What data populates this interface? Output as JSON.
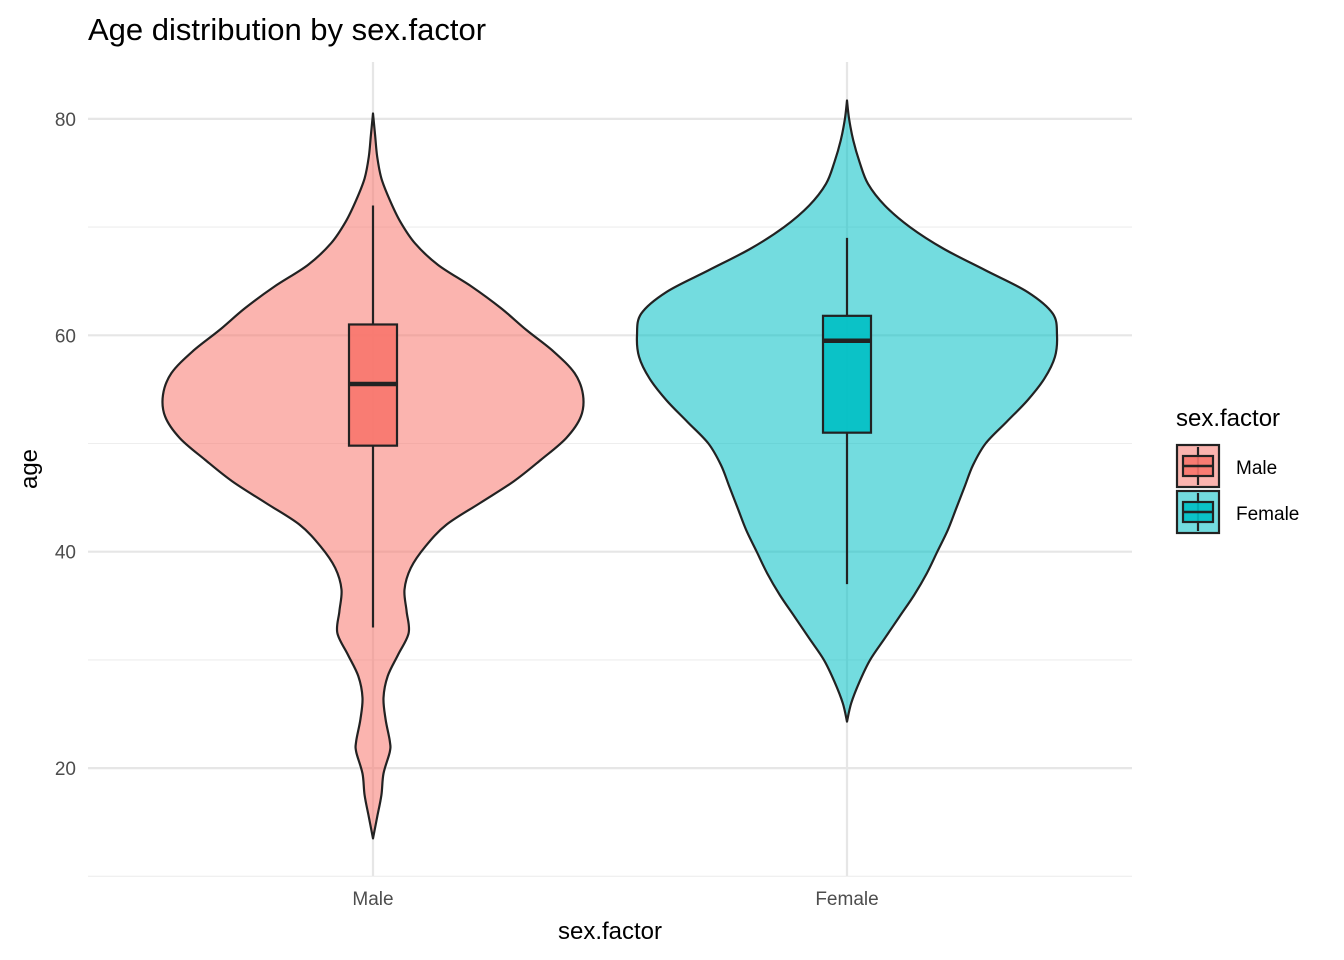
{
  "chart_data": {
    "type": "violin",
    "title": "Age distribution by sex.factor",
    "xlabel": "sex.factor",
    "ylabel": "age",
    "ylim": [
      10,
      85
    ],
    "yticks": [
      20,
      40,
      60,
      80
    ],
    "grid": true,
    "legend": {
      "title": "sex.factor",
      "position": "right",
      "entries": [
        "Male",
        "Female"
      ]
    },
    "categories": [
      "Male",
      "Female"
    ],
    "series": [
      {
        "name": "Male",
        "color": "#F8766D",
        "box": {
          "whisker_low": 33,
          "q1": 49.8,
          "median": 55.5,
          "q3": 61,
          "whisker_high": 72
        },
        "density": [
          [
            13.5,
            0
          ],
          [
            15.5,
            0.02
          ],
          [
            17.5,
            0.04
          ],
          [
            19.5,
            0.05
          ],
          [
            21.5,
            0.08
          ],
          [
            22.5,
            0.08
          ],
          [
            24.5,
            0.06
          ],
          [
            26.5,
            0.05
          ],
          [
            28.5,
            0.07
          ],
          [
            30.5,
            0.12
          ],
          [
            32.5,
            0.17
          ],
          [
            34.5,
            0.16
          ],
          [
            36.5,
            0.15
          ],
          [
            38.5,
            0.18
          ],
          [
            40.5,
            0.25
          ],
          [
            42.5,
            0.35
          ],
          [
            44.5,
            0.51
          ],
          [
            46.5,
            0.67
          ],
          [
            48.5,
            0.8
          ],
          [
            50.5,
            0.92
          ],
          [
            52.5,
            0.99
          ],
          [
            54.5,
            1.0
          ],
          [
            56.5,
            0.96
          ],
          [
            58.5,
            0.86
          ],
          [
            60.5,
            0.73
          ],
          [
            62.5,
            0.61
          ],
          [
            64.5,
            0.47
          ],
          [
            66.5,
            0.31
          ],
          [
            68.5,
            0.2
          ],
          [
            70.5,
            0.13
          ],
          [
            72.5,
            0.08
          ],
          [
            74.5,
            0.04
          ],
          [
            76.5,
            0.02
          ],
          [
            78.5,
            0.01
          ],
          [
            80.5,
            0
          ]
        ]
      },
      {
        "name": "Female",
        "color": "#00BFC4",
        "box": {
          "whisker_low": 37,
          "q1": 51,
          "median": 59.5,
          "q3": 61.8,
          "whisker_high": 69
        },
        "density": [
          [
            24.3,
            0
          ],
          [
            26,
            0.02
          ],
          [
            28,
            0.06
          ],
          [
            30,
            0.11
          ],
          [
            32,
            0.18
          ],
          [
            34,
            0.25
          ],
          [
            36,
            0.32
          ],
          [
            38,
            0.38
          ],
          [
            40,
            0.43
          ],
          [
            42,
            0.48
          ],
          [
            44,
            0.52
          ],
          [
            46,
            0.56
          ],
          [
            48,
            0.6
          ],
          [
            50,
            0.66
          ],
          [
            52,
            0.76
          ],
          [
            54,
            0.86
          ],
          [
            56,
            0.94
          ],
          [
            58,
            0.99
          ],
          [
            60,
            1.0
          ],
          [
            62,
            0.98
          ],
          [
            64,
            0.86
          ],
          [
            66,
            0.66
          ],
          [
            68,
            0.46
          ],
          [
            70,
            0.3
          ],
          [
            72,
            0.18
          ],
          [
            74,
            0.1
          ],
          [
            76,
            0.06
          ],
          [
            78,
            0.03
          ],
          [
            80,
            0.01
          ],
          [
            81.7,
            0
          ]
        ]
      }
    ]
  }
}
